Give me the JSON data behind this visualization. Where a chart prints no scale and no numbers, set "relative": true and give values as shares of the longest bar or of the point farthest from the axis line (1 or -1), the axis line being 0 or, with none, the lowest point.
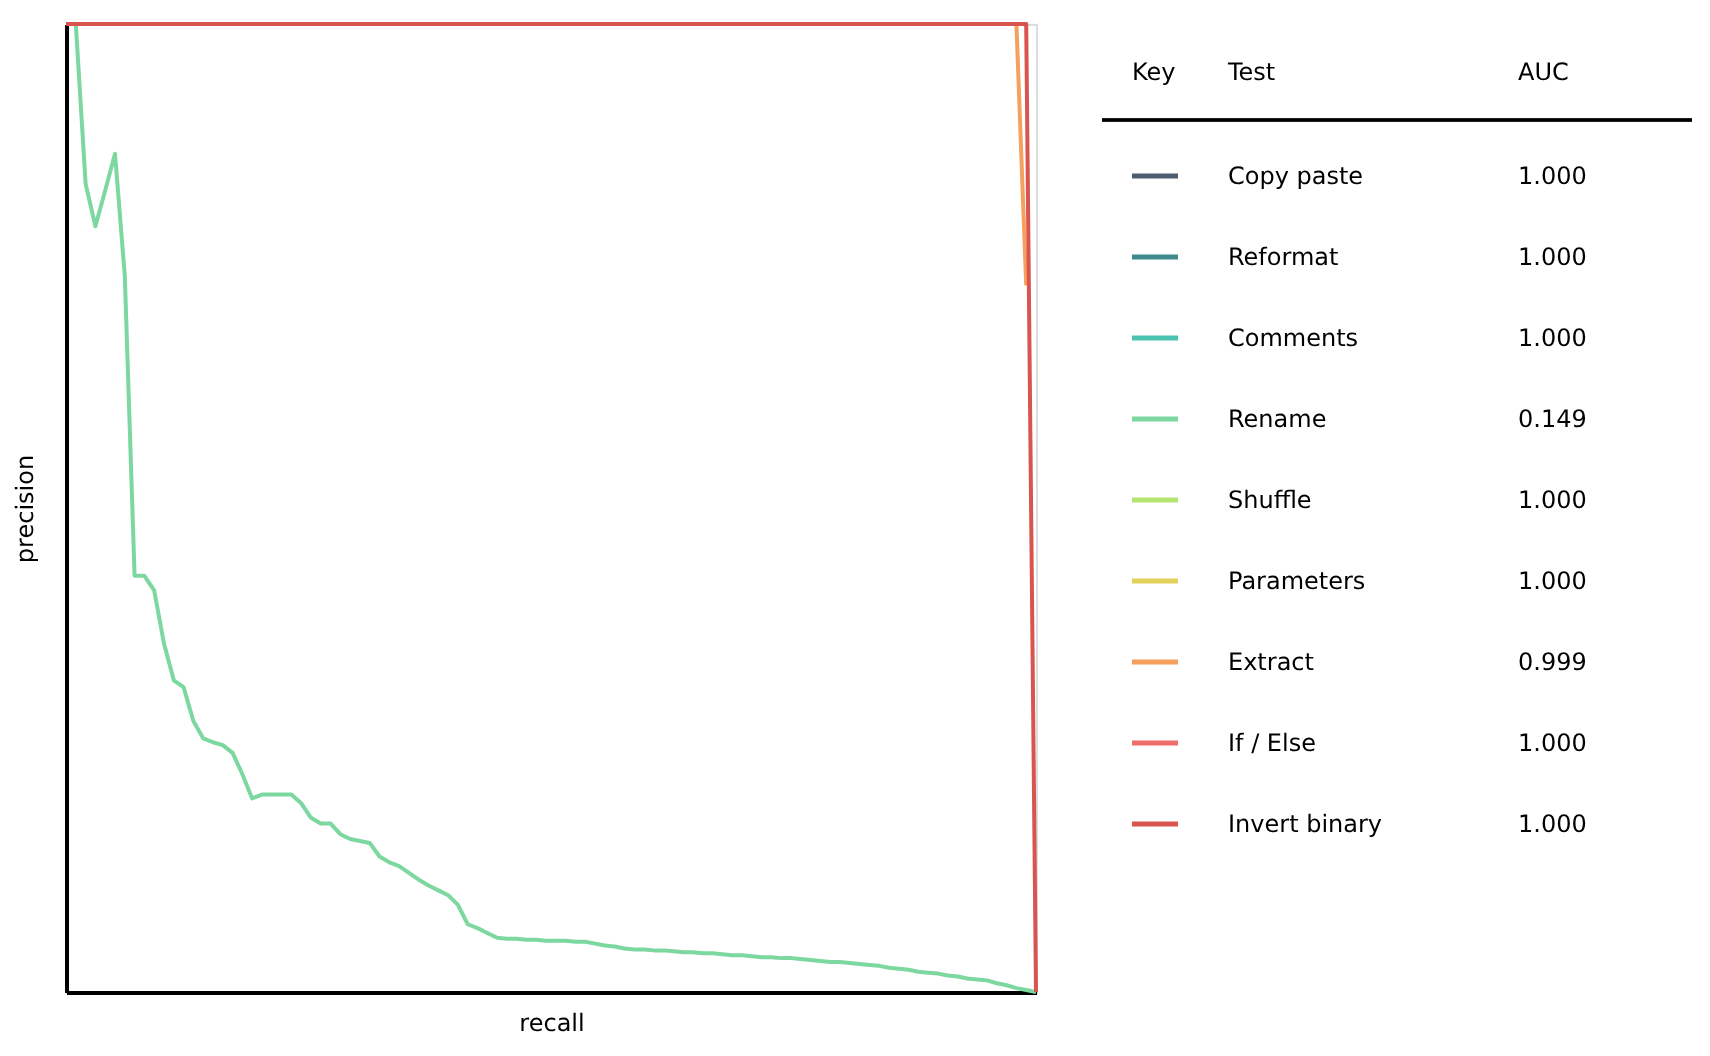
{
  "chart_data": {
    "type": "line",
    "xlabel": "recall",
    "ylabel": "precision",
    "relative": true,
    "grid": false,
    "legend": "right",
    "tick_labels": false,
    "line_style": "solid",
    "marker": "none",
    "categories": [
      null,
      null,
      null,
      null,
      null,
      null,
      null,
      null,
      null,
      null,
      null,
      null,
      null,
      null,
      null,
      null,
      null,
      null,
      null,
      null,
      null,
      null,
      null,
      null,
      null,
      null,
      null,
      null,
      null,
      null,
      null,
      null,
      null,
      null,
      null,
      null,
      null,
      null,
      null,
      null,
      null,
      null,
      null,
      null,
      null,
      null,
      null,
      null,
      null,
      null,
      null,
      null,
      null,
      null,
      null,
      null,
      null,
      null,
      null,
      null,
      null,
      null,
      null,
      null,
      null,
      null,
      null,
      null,
      null,
      null,
      null,
      null,
      null,
      null,
      null,
      null,
      null,
      null,
      null,
      null,
      null,
      null,
      null,
      null,
      null,
      null,
      null,
      null,
      null,
      null,
      null,
      null,
      null,
      null,
      null,
      null,
      null,
      null,
      null,
      null
    ],
    "annotations": [
      "Key",
      "Test",
      "AUC",
      "1.000",
      "1.000",
      "1.000",
      "0.149",
      "1.000",
      "1.000",
      "0.999",
      "1.000",
      "1.000"
    ],
    "series": [
      {
        "name": "Copy paste",
        "color": "#4d5d6e",
        "values": [
          null,
          null,
          null,
          null,
          null,
          null,
          null,
          null,
          null,
          null,
          null,
          null,
          null,
          null,
          null,
          null,
          null,
          null,
          null,
          null,
          null,
          null,
          null,
          null,
          null,
          null,
          null,
          null,
          null,
          null,
          null,
          null,
          null,
          null,
          null,
          null,
          null,
          null,
          null,
          null,
          null,
          null,
          null,
          null,
          null,
          null,
          null,
          null,
          null,
          null,
          null,
          null,
          null,
          null,
          null,
          null,
          null,
          null,
          null,
          null,
          null,
          null,
          null,
          null,
          null,
          null,
          null,
          null,
          null,
          null,
          null,
          null,
          null,
          null,
          null,
          null,
          null,
          null,
          null,
          null,
          null,
          null,
          null,
          null,
          null,
          null,
          null,
          null,
          null,
          null,
          null,
          null,
          null,
          null,
          null,
          null,
          null,
          null,
          null,
          null
        ]
      },
      {
        "name": "Reformat",
        "color": "#3f8a8c",
        "values": [
          null,
          null,
          null,
          null,
          null,
          null,
          null,
          null,
          null,
          null,
          null,
          null,
          null,
          null,
          null,
          null,
          null,
          null,
          null,
          null,
          null,
          null,
          null,
          null,
          null,
          null,
          null,
          null,
          null,
          null,
          null,
          null,
          null,
          null,
          null,
          null,
          null,
          null,
          null,
          null,
          null,
          null,
          null,
          null,
          null,
          null,
          null,
          null,
          null,
          null,
          null,
          null,
          null,
          null,
          null,
          null,
          null,
          null,
          null,
          null,
          null,
          null,
          null,
          null,
          null,
          null,
          null,
          null,
          null,
          null,
          null,
          null,
          null,
          null,
          null,
          null,
          null,
          null,
          null,
          null,
          null,
          null,
          null,
          null,
          null,
          null,
          null,
          null,
          null,
          null,
          null,
          null,
          null,
          null,
          null,
          null,
          null,
          null,
          null,
          null
        ]
      },
      {
        "name": "Comments",
        "color": "#4cc3b0",
        "values": [
          null,
          null,
          null,
          null,
          null,
          null,
          null,
          null,
          null,
          null,
          null,
          null,
          null,
          null,
          null,
          null,
          null,
          null,
          null,
          null,
          null,
          null,
          null,
          null,
          null,
          null,
          null,
          null,
          null,
          null,
          null,
          null,
          null,
          null,
          null,
          null,
          null,
          null,
          null,
          null,
          null,
          null,
          null,
          null,
          null,
          null,
          null,
          null,
          null,
          null,
          null,
          null,
          null,
          null,
          null,
          null,
          null,
          null,
          null,
          null,
          null,
          null,
          null,
          null,
          null,
          null,
          null,
          null,
          null,
          null,
          null,
          null,
          null,
          null,
          null,
          null,
          null,
          null,
          null,
          null,
          null,
          null,
          null,
          null,
          null,
          null,
          null,
          null,
          null,
          null,
          null,
          null,
          null,
          null,
          null,
          null,
          null,
          null,
          null,
          null
        ]
      },
      {
        "name": "Rename",
        "color": "#7dd8a0",
        "values": [
          null,
          1,
          0.835,
          0.791,
          0.828,
          0.866,
          0.74,
          0.43,
          0.43,
          0.415,
          0.36,
          0.322,
          0.315,
          0.28,
          0.262,
          0.258,
          0.255,
          0.247,
          0.225,
          0.2,
          0.204,
          0.204,
          0.204,
          0.204,
          0.195,
          0.18,
          0.174,
          0.174,
          0.163,
          0.158,
          0.156,
          0.154,
          0.14,
          0.134,
          0.13,
          0.123,
          0.116,
          0.11,
          0.105,
          0.1,
          0.09,
          0.07,
          0.066,
          0.061,
          0.056,
          0.055,
          0.055,
          0.054,
          0.054,
          0.053,
          0.053,
          0.053,
          0.052,
          0.052,
          0.05,
          0.048,
          0.047,
          0.045,
          0.044,
          0.044,
          0.043,
          0.043,
          0.042,
          0.041,
          0.041,
          0.04,
          0.04,
          0.039,
          0.038,
          0.038,
          0.037,
          0.036,
          0.036,
          0.035,
          0.035,
          0.034,
          0.033,
          0.032,
          0.031,
          0.031,
          0.03,
          0.029,
          0.028,
          0.027,
          0.025,
          0.024,
          0.023,
          0.021,
          0.02,
          0.019,
          0.017,
          0.016,
          0.014,
          0.013,
          0.012,
          0.009,
          0.007,
          0.004,
          0.002,
          0
        ]
      },
      {
        "name": "Shuffle",
        "color": "#b5e46f",
        "values": [
          null,
          null,
          null,
          null,
          null,
          null,
          null,
          null,
          null,
          null,
          null,
          null,
          null,
          null,
          null,
          null,
          null,
          null,
          null,
          null,
          null,
          null,
          null,
          null,
          null,
          null,
          null,
          null,
          null,
          null,
          null,
          null,
          null,
          null,
          null,
          null,
          null,
          null,
          null,
          null,
          null,
          null,
          null,
          null,
          null,
          null,
          null,
          null,
          null,
          null,
          null,
          null,
          null,
          null,
          null,
          null,
          null,
          null,
          null,
          null,
          null,
          null,
          null,
          null,
          null,
          null,
          null,
          null,
          null,
          null,
          null,
          null,
          null,
          null,
          null,
          null,
          null,
          null,
          null,
          null,
          null,
          null,
          null,
          null,
          null,
          null,
          null,
          null,
          null,
          null,
          null,
          null,
          null,
          null,
          null,
          null,
          null,
          null,
          null,
          null
        ]
      },
      {
        "name": "Parameters",
        "color": "#e2d25a",
        "values": [
          null,
          null,
          null,
          null,
          null,
          null,
          null,
          null,
          null,
          null,
          null,
          null,
          null,
          null,
          null,
          null,
          null,
          null,
          null,
          null,
          null,
          null,
          null,
          null,
          null,
          null,
          null,
          null,
          null,
          null,
          null,
          null,
          null,
          null,
          null,
          null,
          null,
          null,
          null,
          null,
          null,
          null,
          null,
          null,
          null,
          null,
          null,
          null,
          null,
          null,
          null,
          null,
          null,
          null,
          null,
          null,
          null,
          null,
          null,
          null,
          null,
          null,
          null,
          null,
          null,
          null,
          null,
          null,
          null,
          null,
          null,
          null,
          null,
          null,
          null,
          null,
          null,
          null,
          null,
          null,
          null,
          null,
          null,
          null,
          null,
          null,
          null,
          null,
          null,
          null,
          null,
          null,
          null,
          null,
          null,
          null,
          null,
          null,
          null,
          null
        ]
      },
      {
        "name": "Extract",
        "color": "#f5a05e",
        "values": [
          null,
          null,
          null,
          null,
          null,
          null,
          null,
          null,
          null,
          null,
          null,
          null,
          null,
          null,
          null,
          null,
          null,
          null,
          null,
          null,
          null,
          null,
          null,
          null,
          null,
          null,
          null,
          null,
          null,
          null,
          null,
          null,
          null,
          null,
          null,
          null,
          null,
          null,
          null,
          null,
          null,
          null,
          null,
          null,
          null,
          null,
          null,
          null,
          null,
          null,
          null,
          null,
          null,
          null,
          null,
          null,
          null,
          null,
          null,
          null,
          null,
          null,
          null,
          null,
          null,
          null,
          null,
          null,
          null,
          null,
          null,
          null,
          null,
          null,
          null,
          null,
          null,
          null,
          null,
          null,
          null,
          null,
          null,
          null,
          null,
          null,
          null,
          null,
          null,
          null,
          null,
          null,
          null,
          null,
          null,
          null,
          null,
          1,
          0.73,
          null
        ]
      },
      {
        "name": "If / Else",
        "color": "#ee6e6b",
        "values": [
          null,
          null,
          null,
          null,
          null,
          null,
          null,
          null,
          null,
          null,
          null,
          null,
          null,
          null,
          null,
          null,
          null,
          null,
          null,
          null,
          null,
          null,
          null,
          null,
          null,
          null,
          null,
          null,
          null,
          null,
          null,
          null,
          null,
          null,
          null,
          null,
          null,
          null,
          null,
          null,
          null,
          null,
          null,
          null,
          null,
          null,
          null,
          null,
          null,
          null,
          null,
          null,
          null,
          null,
          null,
          null,
          null,
          null,
          null,
          null,
          null,
          null,
          null,
          null,
          null,
          null,
          null,
          null,
          null,
          null,
          null,
          null,
          null,
          null,
          null,
          null,
          null,
          null,
          null,
          null,
          null,
          null,
          null,
          null,
          null,
          null,
          null,
          null,
          null,
          null,
          null,
          null,
          null,
          null,
          null,
          null,
          null,
          null,
          null,
          null
        ]
      },
      {
        "name": "Invert binary",
        "color": "#d9534f",
        "values": [
          1,
          1,
          1,
          1,
          1,
          1,
          1,
          1,
          1,
          1,
          1,
          1,
          1,
          1,
          1,
          1,
          1,
          1,
          1,
          1,
          1,
          1,
          1,
          1,
          1,
          1,
          1,
          1,
          1,
          1,
          1,
          1,
          1,
          1,
          1,
          1,
          1,
          1,
          1,
          1,
          1,
          1,
          1,
          1,
          1,
          1,
          1,
          1,
          1,
          1,
          1,
          1,
          1,
          1,
          1,
          1,
          1,
          1,
          1,
          1,
          1,
          1,
          1,
          1,
          1,
          1,
          1,
          1,
          1,
          1,
          1,
          1,
          1,
          1,
          1,
          1,
          1,
          1,
          1,
          1,
          1,
          1,
          1,
          1,
          1,
          1,
          1,
          1,
          1,
          1,
          1,
          1,
          1,
          1,
          1,
          1,
          1,
          1,
          1,
          0
        ]
      }
    ]
  }
}
